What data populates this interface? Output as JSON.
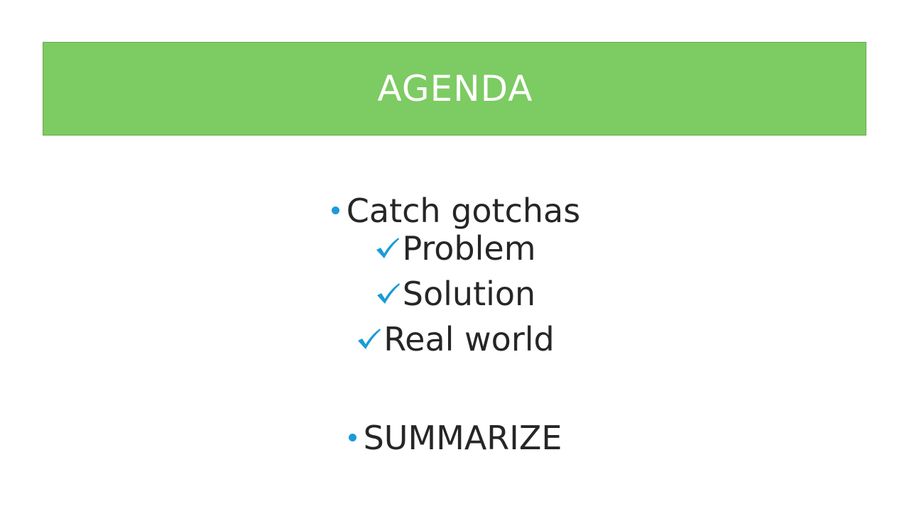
{
  "slide": {
    "title": "AGENDA",
    "colors": {
      "band": "#7dcb63",
      "title_text": "#ffffff",
      "accent": "#1a9bd7",
      "body_text": "#262626"
    },
    "items": [
      {
        "marker": "bullet-icon",
        "text": "Catch gotchas"
      },
      {
        "marker": "checkmark-icon",
        "text": "Problem"
      },
      {
        "marker": "checkmark-icon",
        "text": "Solution"
      },
      {
        "marker": "checkmark-icon",
        "text": "Real world"
      },
      {
        "marker": "bullet-icon",
        "text": "SUMMARIZE"
      }
    ]
  }
}
